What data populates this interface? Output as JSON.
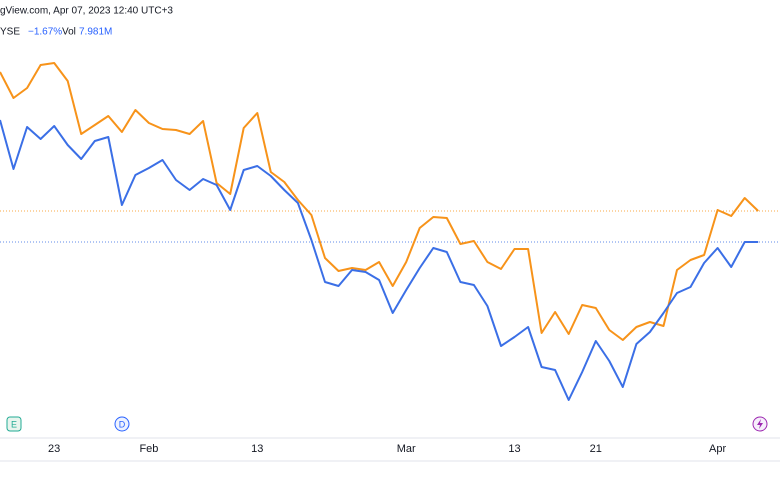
{
  "header": {
    "source": "gView.com, Apr 07, 2023 12:40 UTC+3",
    "ticker": "YSE",
    "change": "−1.67%",
    "vol_label": "Vol",
    "vol": "7.981M"
  },
  "events": [
    "E",
    "D"
  ],
  "chart_data": {
    "type": "line",
    "categories": [
      null,
      null,
      null,
      null,
      "23",
      null,
      null,
      null,
      null,
      null,
      null,
      "Feb",
      null,
      null,
      null,
      null,
      null,
      null,
      null,
      "13",
      null,
      null,
      null,
      null,
      null,
      null,
      null,
      null,
      null,
      null,
      "Mar",
      null,
      null,
      null,
      null,
      null,
      null,
      null,
      "13",
      null,
      null,
      null,
      null,
      null,
      "21",
      null,
      null,
      null,
      null,
      null,
      null,
      null,
      null,
      "Apr",
      null,
      null,
      null
    ],
    "series": [
      {
        "color": "#f7931a",
        "values": [
          348,
          322,
          332,
          355,
          357,
          339,
          286,
          295,
          304,
          288,
          310,
          297,
          291,
          290,
          286,
          299,
          237,
          226,
          292,
          307,
          248,
          238,
          220,
          205,
          162,
          149,
          152,
          150,
          158,
          134,
          158,
          192,
          203,
          202,
          176,
          179,
          158,
          151,
          171,
          171,
          87,
          108,
          86,
          115,
          112,
          90,
          80,
          93,
          98,
          94,
          150,
          160,
          165,
          210,
          204,
          222,
          209
        ]
      },
      {
        "color": "#3b6fe6",
        "values": [
          300,
          251,
          293,
          281,
          294,
          275,
          261,
          279,
          283,
          215,
          245,
          252,
          260,
          240,
          230,
          241,
          235,
          210,
          250,
          254,
          244,
          230,
          217,
          180,
          138,
          134,
          150,
          148,
          140,
          107,
          130,
          152,
          172,
          168,
          138,
          135,
          114,
          74,
          83,
          93,
          53,
          50,
          20,
          48,
          79,
          59,
          33,
          76,
          88,
          107,
          127,
          133,
          157,
          172,
          153,
          178,
          178
        ]
      }
    ],
    "ylim": [
      0,
      410
    ]
  }
}
